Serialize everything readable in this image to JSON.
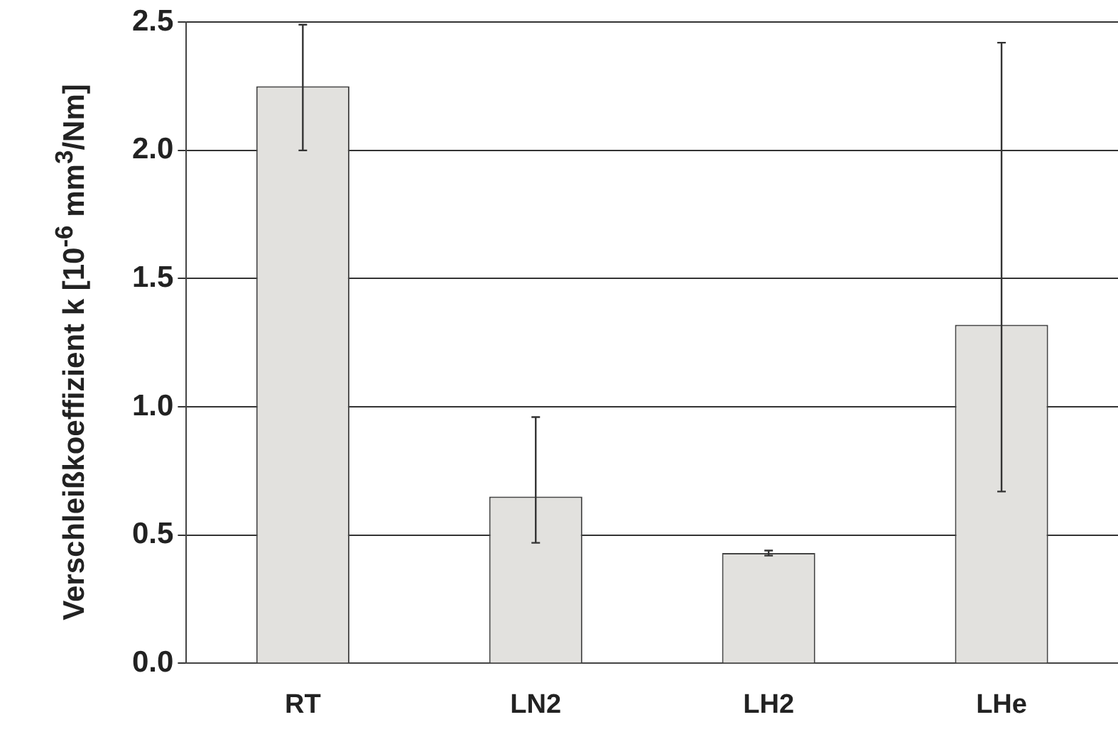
{
  "chart_data": {
    "type": "bar",
    "ylabel": "Verschleißkoeffizient k [10$^{-6}$ mm$^{3}$/Nm]",
    "categories": [
      "RT",
      "LN2",
      "LH2",
      "LHe"
    ],
    "values": [
      2.25,
      0.65,
      0.43,
      1.32
    ],
    "errors": [
      [
        2.0,
        2.49
      ],
      [
        0.47,
        0.96
      ],
      [
        0.42,
        0.44
      ],
      [
        0.67,
        2.42
      ]
    ],
    "color": "#e2e1de",
    "ylim": [
      0,
      2.5
    ],
    "yticks": [
      {
        "value": 0,
        "label": "0.0"
      },
      0.5,
      {
        "value": 1,
        "label": "1.0"
      },
      1.5,
      {
        "value": 2,
        "label": "2.0"
      },
      2.5
    ],
    "grid": "y",
    "legend": false
  }
}
